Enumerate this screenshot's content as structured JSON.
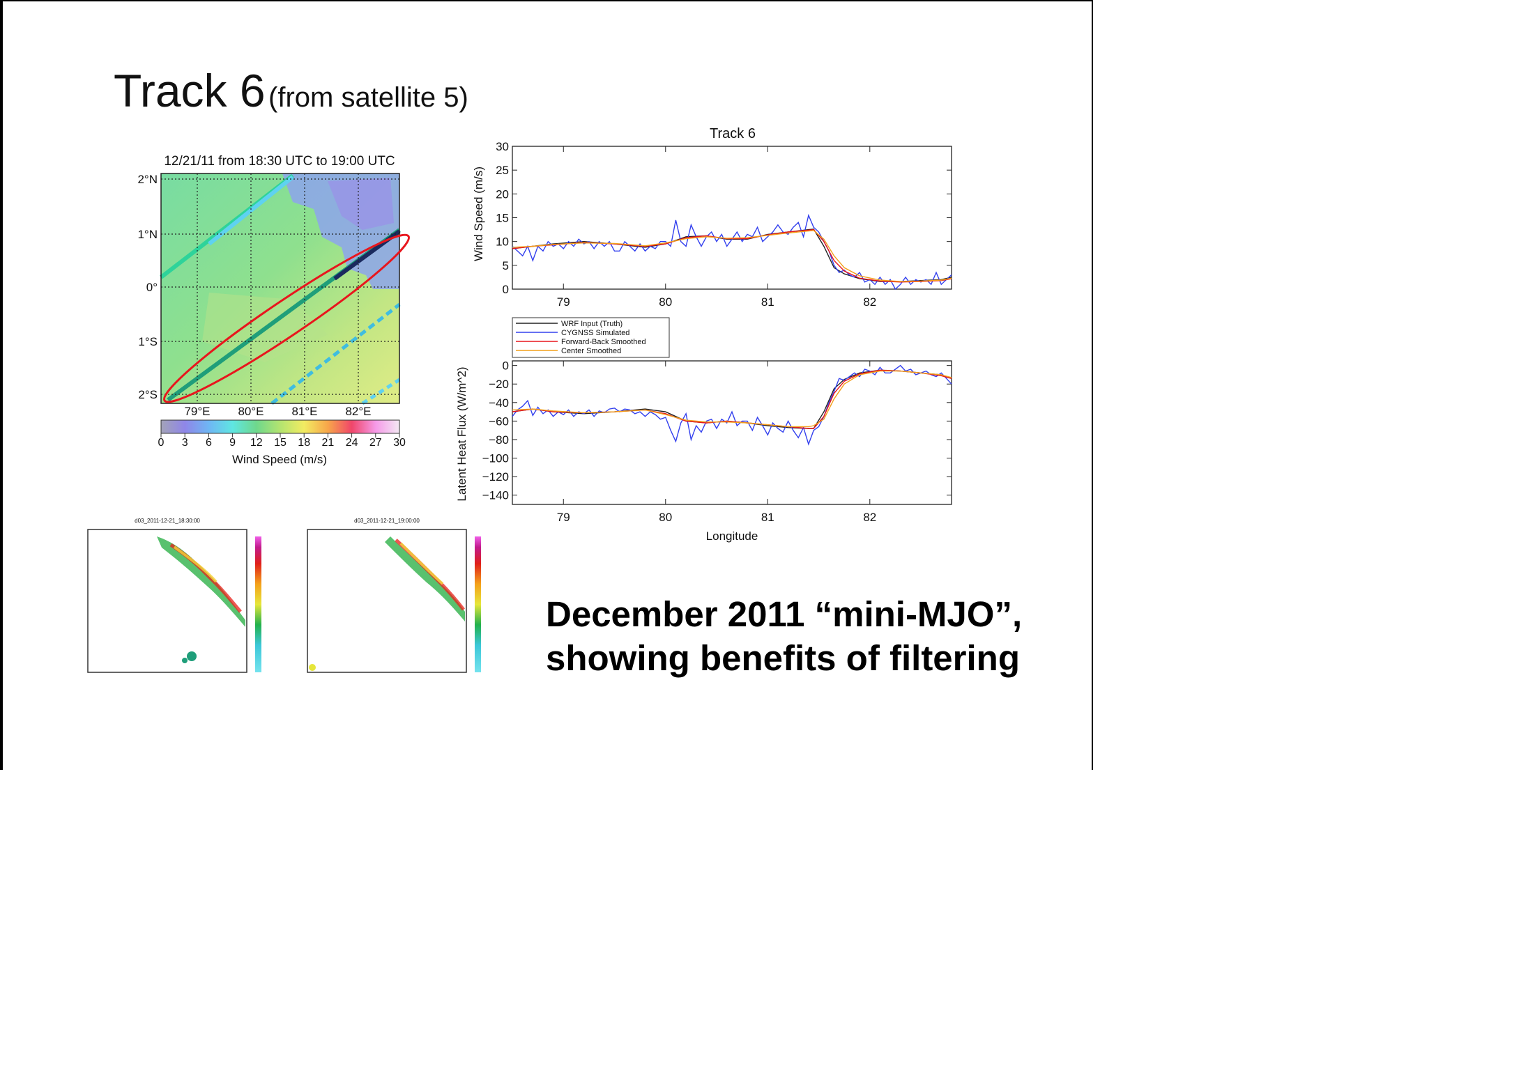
{
  "slide": {
    "title": "Track 6",
    "title_sub": "(from satellite 5)",
    "caption": "December 2011 “mini-MJO”, showing benefits of filtering"
  },
  "map": {
    "title": "12/21/11 from 18:30 UTC to 19:00 UTC",
    "lat_labels": [
      "2°N",
      "1°N",
      "0°",
      "1°S",
      "2°S"
    ],
    "lon_labels": [
      "79°E",
      "80°E",
      "81°E",
      "82°E"
    ],
    "colorbar_ticks": [
      "0",
      "3",
      "6",
      "9",
      "12",
      "15",
      "18",
      "21",
      "24",
      "27",
      "30"
    ],
    "colorbar_label": "Wind Speed (m/s)",
    "highlight_color": "#e8161d"
  },
  "radar_panels": [
    {
      "title": "d03_2011-12-21_18:30:00"
    },
    {
      "title": "d03_2011-12-21_19:00:00"
    }
  ],
  "chart_data": [
    {
      "type": "line",
      "title": "Track 6",
      "xlabel": "",
      "ylabel": "Wind Speed (m/s)",
      "xlim": [
        78.5,
        82.8
      ],
      "ylim": [
        0,
        30
      ],
      "xticks": [
        79,
        80,
        81,
        82
      ],
      "yticks": [
        0,
        5,
        10,
        15,
        20,
        25,
        30
      ],
      "series": [
        {
          "name": "WRF Input (Truth)",
          "color": "#222222",
          "x": [
            78.5,
            78.7,
            78.9,
            79.2,
            79.5,
            79.8,
            80.0,
            80.2,
            80.4,
            80.6,
            80.8,
            81.0,
            81.2,
            81.4,
            81.45,
            81.55,
            81.65,
            81.75,
            81.9,
            82.1,
            82.3,
            82.5,
            82.7,
            82.8
          ],
          "y": [
            8.5,
            9,
            9.5,
            10,
            9.5,
            8.8,
            9.5,
            11,
            11.2,
            10.5,
            10.5,
            11.5,
            12,
            12.5,
            12.6,
            9,
            4.5,
            3.2,
            2.2,
            1.6,
            1.6,
            1.8,
            2,
            2.5
          ]
        },
        {
          "name": "CYGNSS Simulated",
          "color": "#3340ee",
          "x": [
            78.5,
            78.55,
            78.6,
            78.65,
            78.7,
            78.75,
            78.8,
            78.85,
            78.9,
            78.95,
            79.0,
            79.05,
            79.1,
            79.15,
            79.2,
            79.25,
            79.3,
            79.35,
            79.4,
            79.45,
            79.5,
            79.55,
            79.6,
            79.65,
            79.7,
            79.75,
            79.8,
            79.85,
            79.9,
            79.95,
            80.0,
            80.05,
            80.1,
            80.15,
            80.2,
            80.25,
            80.3,
            80.35,
            80.4,
            80.45,
            80.5,
            80.55,
            80.6,
            80.65,
            80.7,
            80.75,
            80.8,
            80.85,
            80.9,
            80.95,
            81.0,
            81.05,
            81.1,
            81.15,
            81.2,
            81.25,
            81.3,
            81.35,
            81.4,
            81.45,
            81.5,
            81.55,
            81.6,
            81.65,
            81.7,
            81.75,
            81.8,
            81.85,
            81.9,
            81.95,
            82.0,
            82.05,
            82.1,
            82.15,
            82.2,
            82.25,
            82.3,
            82.35,
            82.4,
            82.45,
            82.5,
            82.55,
            82.6,
            82.65,
            82.7,
            82.75,
            82.8
          ],
          "y": [
            9,
            8,
            7,
            9,
            6,
            9,
            8,
            10,
            9,
            9.5,
            8.5,
            10,
            9,
            10.5,
            9.5,
            10,
            8.5,
            10,
            9,
            10,
            8,
            8,
            10,
            9,
            8,
            9.5,
            8,
            9,
            8.5,
            10,
            10,
            9,
            14.5,
            10,
            9,
            13.5,
            11,
            9,
            11,
            12,
            10,
            11.5,
            9,
            10.5,
            12,
            10,
            11.5,
            11,
            13,
            10,
            11,
            12,
            13.5,
            12,
            11.5,
            13,
            14,
            11,
            15.5,
            13,
            12,
            10,
            8,
            5,
            3.5,
            4,
            3,
            2.5,
            3.5,
            1.5,
            2,
            1,
            2.5,
            1,
            2,
            0,
            1,
            2.5,
            1,
            2,
            1.5,
            2,
            1,
            3.5,
            1,
            2,
            3
          ]
        },
        {
          "name": "Forward-Back Smoothed",
          "color": "#e8161d",
          "x": [
            78.5,
            78.7,
            78.9,
            79.2,
            79.5,
            79.8,
            80.0,
            80.2,
            80.4,
            80.6,
            80.8,
            81.0,
            81.2,
            81.4,
            81.45,
            81.55,
            81.65,
            81.75,
            81.9,
            82.1,
            82.3,
            82.5,
            82.7,
            82.8
          ],
          "y": [
            8.5,
            9,
            9.3,
            9.8,
            9.5,
            9,
            9.5,
            10.8,
            11.2,
            10.6,
            10.6,
            11.4,
            12,
            12.4,
            12.5,
            10,
            6,
            3.8,
            2.3,
            1.7,
            1.5,
            1.6,
            1.8,
            2.2
          ]
        },
        {
          "name": "Center Smoothed",
          "color": "#f2a01c",
          "x": [
            78.5,
            78.7,
            78.9,
            79.2,
            79.5,
            79.8,
            80.0,
            80.2,
            80.4,
            80.6,
            80.8,
            81.0,
            81.2,
            81.4,
            81.45,
            81.55,
            81.65,
            81.75,
            81.9,
            82.1,
            82.3,
            82.5,
            82.7,
            82.8
          ],
          "y": [
            8.8,
            9,
            9.4,
            9.7,
            9.6,
            9.1,
            9.7,
            10.6,
            11,
            10.7,
            10.8,
            11.3,
            11.8,
            12.2,
            12.3,
            10.5,
            7,
            4.5,
            2.8,
            1.9,
            1.6,
            1.7,
            1.9,
            2.3
          ]
        }
      ]
    },
    {
      "type": "line",
      "title": "",
      "xlabel": "Longitude",
      "ylabel": "Latent Heat Flux (W/m^2)",
      "xlim": [
        78.5,
        82.8
      ],
      "ylim": [
        -150,
        5
      ],
      "xticks": [
        79,
        80,
        81,
        82
      ],
      "yticks": [
        0,
        -20,
        -40,
        -60,
        -80,
        -100,
        -120,
        -140
      ],
      "legend": "top-left",
      "series": [
        {
          "name": "WRF Input (Truth)",
          "color": "#222222",
          "x": [
            78.5,
            78.7,
            78.9,
            79.2,
            79.5,
            79.8,
            80.0,
            80.2,
            80.4,
            80.6,
            80.8,
            81.0,
            81.2,
            81.4,
            81.45,
            81.55,
            81.65,
            81.75,
            81.9,
            82.1,
            82.3,
            82.5,
            82.7,
            82.8
          ],
          "y": [
            -50,
            -47,
            -50,
            -52,
            -50,
            -47,
            -50,
            -60,
            -62,
            -60,
            -62,
            -65,
            -67,
            -68,
            -68,
            -50,
            -25,
            -15,
            -8,
            -5,
            -6,
            -8,
            -10,
            -14
          ]
        },
        {
          "name": "CYGNSS Simulated",
          "color": "#3340ee",
          "x": [
            78.5,
            78.55,
            78.6,
            78.65,
            78.7,
            78.75,
            78.8,
            78.85,
            78.9,
            78.95,
            79.0,
            79.05,
            79.1,
            79.15,
            79.2,
            79.25,
            79.3,
            79.35,
            79.4,
            79.45,
            79.5,
            79.55,
            79.6,
            79.65,
            79.7,
            79.75,
            79.8,
            79.85,
            79.9,
            79.95,
            80.0,
            80.05,
            80.1,
            80.15,
            80.2,
            80.25,
            80.3,
            80.35,
            80.4,
            80.45,
            80.5,
            80.55,
            80.6,
            80.65,
            80.7,
            80.75,
            80.8,
            80.85,
            80.9,
            80.95,
            81.0,
            81.05,
            81.1,
            81.15,
            81.2,
            81.25,
            81.3,
            81.35,
            81.4,
            81.45,
            81.5,
            81.55,
            81.6,
            81.65,
            81.7,
            81.75,
            81.8,
            81.85,
            81.9,
            81.95,
            82.0,
            82.05,
            82.1,
            82.15,
            82.2,
            82.25,
            82.3,
            82.35,
            82.4,
            82.45,
            82.5,
            82.55,
            82.6,
            82.65,
            82.7,
            82.75,
            82.8
          ],
          "y": [
            -55,
            -48,
            -44,
            -38,
            -54,
            -45,
            -52,
            -48,
            -55,
            -50,
            -53,
            -48,
            -55,
            -50,
            -52,
            -48,
            -55,
            -49,
            -51,
            -47,
            -46,
            -50,
            -47,
            -48,
            -52,
            -50,
            -55,
            -50,
            -53,
            -58,
            -56,
            -70,
            -82,
            -62,
            -52,
            -80,
            -65,
            -72,
            -60,
            -58,
            -68,
            -58,
            -62,
            -50,
            -65,
            -60,
            -60,
            -70,
            -56,
            -65,
            -75,
            -62,
            -68,
            -72,
            -60,
            -70,
            -78,
            -67,
            -85,
            -70,
            -66,
            -55,
            -40,
            -28,
            -14,
            -16,
            -12,
            -8,
            -12,
            -4,
            -6,
            -10,
            -2,
            -8,
            -8,
            -4,
            0,
            -6,
            -4,
            -10,
            -8,
            -6,
            -10,
            -12,
            -8,
            -14,
            -20
          ]
        },
        {
          "name": "Forward-Back Smoothed",
          "color": "#e8161d",
          "x": [
            78.5,
            78.7,
            78.9,
            79.2,
            79.5,
            79.8,
            80.0,
            80.2,
            80.4,
            80.6,
            80.8,
            81.0,
            81.2,
            81.4,
            81.45,
            81.55,
            81.65,
            81.75,
            81.9,
            82.1,
            82.3,
            82.5,
            82.7,
            82.8
          ],
          "y": [
            -50,
            -47,
            -50,
            -51,
            -50,
            -48,
            -52,
            -60,
            -62,
            -60,
            -62,
            -64,
            -66,
            -68,
            -68,
            -55,
            -30,
            -17,
            -9,
            -5,
            -6,
            -8,
            -11,
            -14
          ]
        },
        {
          "name": "Center Smoothed",
          "color": "#f2a01c",
          "x": [
            78.5,
            78.7,
            78.9,
            79.2,
            79.5,
            79.8,
            80.0,
            80.2,
            80.4,
            80.6,
            80.8,
            81.0,
            81.2,
            81.4,
            81.45,
            81.55,
            81.65,
            81.75,
            81.9,
            82.1,
            82.3,
            82.5,
            82.7,
            82.8
          ],
          "y": [
            -48,
            -47,
            -49,
            -51,
            -50,
            -48,
            -53,
            -59,
            -61,
            -61,
            -62,
            -64,
            -66,
            -66,
            -65,
            -58,
            -36,
            -20,
            -10,
            -6,
            -6,
            -8,
            -10,
            -13
          ]
        }
      ]
    }
  ]
}
